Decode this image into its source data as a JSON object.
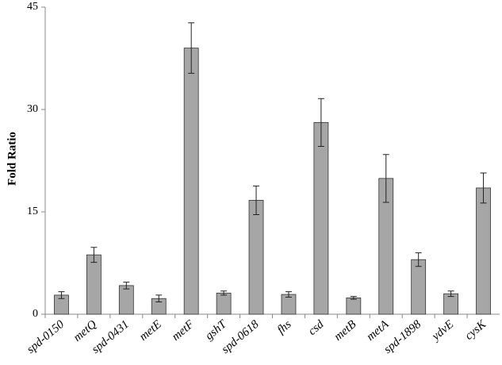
{
  "chart_data": {
    "type": "bar",
    "y_label": "Fold Ratio",
    "categories": [
      "spd-0150",
      "metQ",
      "spd-0431",
      "metE",
      "metF",
      "gshT",
      "spd-0618",
      "fhs",
      "csd",
      "metB",
      "metA",
      "spd-1898",
      "ydvE",
      "cysK"
    ],
    "values": [
      2.8,
      8.7,
      4.2,
      2.3,
      39.0,
      3.1,
      16.7,
      2.9,
      28.1,
      2.4,
      19.9,
      8.0,
      3.0,
      18.5
    ],
    "errors": [
      0.5,
      1.1,
      0.5,
      0.5,
      3.7,
      0.3,
      2.1,
      0.4,
      3.5,
      0.2,
      3.5,
      1.0,
      0.4,
      2.2
    ],
    "color": "#a6a6a6",
    "ylim": [
      0,
      45
    ],
    "yticks": [
      0,
      15,
      30,
      45
    ],
    "grid": false
  }
}
